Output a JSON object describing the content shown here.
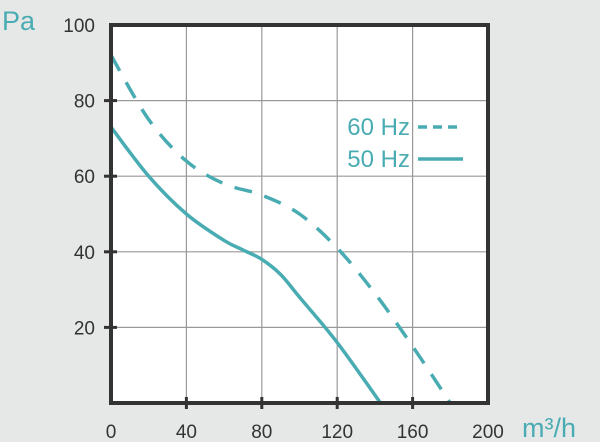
{
  "colors": {
    "series": "#4aacb3",
    "axis": "#333333",
    "grid": "#999999",
    "plot_bg": "#ffffff",
    "page_bg": "#e6e8e8"
  },
  "chart_data": {
    "type": "line",
    "title": "",
    "xlabel": "m³/h",
    "ylabel": "Pa",
    "xlim": [
      0,
      200
    ],
    "ylim": [
      0,
      100
    ],
    "xticks": [
      "0",
      "40",
      "80",
      "120",
      "160",
      "200"
    ],
    "yticks": [
      "20",
      "40",
      "60",
      "80",
      "100"
    ],
    "grid": true,
    "legend": "top-right",
    "series": [
      {
        "name": "60 Hz",
        "style": "dashed",
        "x": [
          0,
          20,
          40,
          60,
          80,
          100,
          120,
          140,
          160,
          180
        ],
        "y": [
          92,
          75,
          64,
          58,
          55,
          50,
          41,
          29,
          15,
          0
        ]
      },
      {
        "name": "50 Hz",
        "style": "solid",
        "x": [
          0,
          20,
          40,
          60,
          70,
          80,
          90,
          100,
          120,
          143
        ],
        "y": [
          73,
          60,
          50,
          43,
          40.5,
          38,
          34,
          28,
          16,
          0
        ]
      }
    ]
  }
}
